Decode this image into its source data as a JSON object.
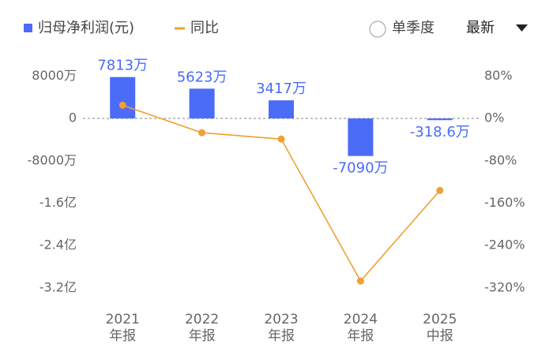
{
  "chart_data": {
    "type": "combo",
    "categories": [
      [
        "2021",
        "年报"
      ],
      [
        "2022",
        "年报"
      ],
      [
        "2023",
        "年报"
      ],
      [
        "2024",
        "年报"
      ],
      [
        "2025",
        "中报"
      ]
    ],
    "series": [
      {
        "name": "归母净利润(元)",
        "type": "bar",
        "color": "#4a6cf7",
        "values": [
          78130000,
          56230000,
          34170000,
          -70900000,
          -3186000
        ],
        "value_labels": [
          "7813万",
          "5623万",
          "3417万",
          "-7090万",
          "-318.6万"
        ]
      },
      {
        "name": "同比",
        "type": "line",
        "color": "#f0a030",
        "axis": "y2",
        "values": [
          25,
          -27,
          -39,
          -307,
          -136
        ]
      }
    ],
    "ylim": [
      -350000000,
      100000000
    ],
    "yticks": [
      {
        "value": 80000000,
        "label": "8000万"
      },
      0,
      {
        "value": -80000000,
        "label": "-8000万"
      },
      {
        "value": -160000000,
        "label": "-1.6亿"
      },
      {
        "value": -240000000,
        "label": "-2.4亿"
      },
      {
        "value": -320000000,
        "label": "-3.2亿"
      }
    ],
    "y2lim": [
      -350,
      100
    ],
    "y2ticks": [
      {
        "value": 80,
        "label": "80%"
      },
      {
        "value": 0,
        "label": "0%"
      },
      {
        "value": -80,
        "label": "-80%"
      },
      {
        "value": -160,
        "label": "-160%"
      },
      {
        "value": -240,
        "label": "-240%"
      },
      {
        "value": -320,
        "label": "-320%"
      }
    ],
    "grid": false
  },
  "controls": {
    "toggle": "单季度",
    "dropdown": "最新"
  }
}
